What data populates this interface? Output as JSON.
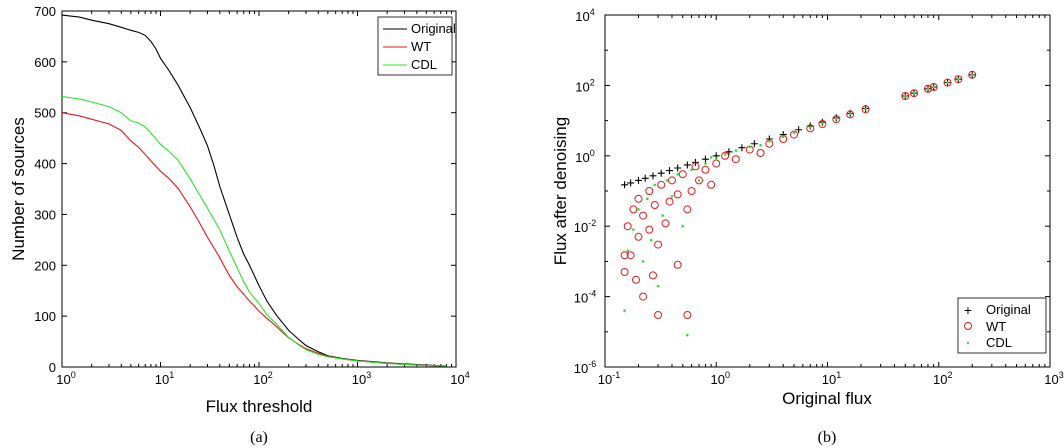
{
  "chart_data": [
    {
      "type": "line",
      "caption": "(a)",
      "xlabel": "Flux threshold",
      "ylabel": "Number of sources",
      "xscale": "log",
      "xlim": [
        1,
        10000
      ],
      "ylim": [
        0,
        700
      ],
      "xticks": [
        1,
        10,
        100,
        1000,
        10000
      ],
      "yticks": [
        0,
        100,
        200,
        300,
        400,
        500,
        600,
        700
      ],
      "legend": "top-right",
      "grid": false,
      "series": [
        {
          "name": "Original",
          "color": "#000000",
          "points": [
            [
              1,
              692
            ],
            [
              1.5,
              688
            ],
            [
              2,
              682
            ],
            [
              3,
              675
            ],
            [
              4,
              668
            ],
            [
              5,
              662
            ],
            [
              6,
              658
            ],
            [
              7,
              652
            ],
            [
              8,
              640
            ],
            [
              9,
              625
            ],
            [
              10,
              607
            ],
            [
              12,
              585
            ],
            [
              15,
              555
            ],
            [
              20,
              510
            ],
            [
              25,
              470
            ],
            [
              30,
              435
            ],
            [
              35,
              395
            ],
            [
              40,
              355
            ],
            [
              50,
              300
            ],
            [
              60,
              255
            ],
            [
              70,
              222
            ],
            [
              80,
              200
            ],
            [
              100,
              160
            ],
            [
              120,
              130
            ],
            [
              150,
              102
            ],
            [
              200,
              72
            ],
            [
              250,
              55
            ],
            [
              300,
              42
            ],
            [
              400,
              30
            ],
            [
              500,
              22
            ],
            [
              700,
              17
            ],
            [
              1000,
              13
            ],
            [
              2000,
              8
            ],
            [
              5000,
              4
            ],
            [
              8000,
              2
            ]
          ]
        },
        {
          "name": "WT",
          "color": "#e41a1c",
          "points": [
            [
              1,
              500
            ],
            [
              1.5,
              494
            ],
            [
              2,
              487
            ],
            [
              3,
              478
            ],
            [
              4,
              465
            ],
            [
              5,
              445
            ],
            [
              6,
              432
            ],
            [
              7,
              418
            ],
            [
              8,
              405
            ],
            [
              10,
              385
            ],
            [
              12,
              372
            ],
            [
              15,
              352
            ],
            [
              20,
              315
            ],
            [
              25,
              283
            ],
            [
              30,
              255
            ],
            [
              40,
              215
            ],
            [
              50,
              180
            ],
            [
              60,
              158
            ],
            [
              70,
              143
            ],
            [
              80,
              130
            ],
            [
              100,
              110
            ],
            [
              120,
              96
            ],
            [
              150,
              80
            ],
            [
              200,
              57
            ],
            [
              250,
              45
            ],
            [
              300,
              36
            ],
            [
              400,
              27
            ],
            [
              500,
              21
            ],
            [
              700,
              16
            ],
            [
              1000,
              12
            ],
            [
              2000,
              7
            ],
            [
              5000,
              3
            ],
            [
              8000,
              2
            ]
          ]
        },
        {
          "name": "CDL",
          "color": "#2ee02e",
          "points": [
            [
              1,
              532
            ],
            [
              1.5,
              527
            ],
            [
              2,
              521
            ],
            [
              3,
              512
            ],
            [
              4,
              500
            ],
            [
              5,
              484
            ],
            [
              6,
              480
            ],
            [
              7,
              472
            ],
            [
              8,
              460
            ],
            [
              10,
              438
            ],
            [
              12,
              425
            ],
            [
              15,
              407
            ],
            [
              20,
              370
            ],
            [
              25,
              338
            ],
            [
              30,
              312
            ],
            [
              40,
              270
            ],
            [
              50,
              228
            ],
            [
              60,
              195
            ],
            [
              70,
              168
            ],
            [
              80,
              147
            ],
            [
              100,
              125
            ],
            [
              120,
              103
            ],
            [
              150,
              85
            ],
            [
              200,
              58
            ],
            [
              250,
              44
            ],
            [
              300,
              34
            ],
            [
              400,
              25
            ],
            [
              500,
              20
            ],
            [
              700,
              16
            ],
            [
              1000,
              12
            ],
            [
              2000,
              7
            ],
            [
              5000,
              3
            ],
            [
              8000,
              2
            ]
          ]
        }
      ]
    },
    {
      "type": "scatter",
      "caption": "(b)",
      "xlabel": "Original flux",
      "ylabel": "Flux after denoising",
      "xscale": "log",
      "yscale": "log",
      "xlim": [
        0.1,
        1000
      ],
      "ylim": [
        1e-06,
        10000
      ],
      "xticks": [
        0.1,
        1,
        10,
        100,
        1000
      ],
      "yticks": [
        1e-06,
        0.0001,
        0.01,
        1,
        100,
        10000
      ],
      "legend": "bottom-right",
      "grid": false,
      "series": [
        {
          "name": "Original",
          "marker": "plus",
          "color": "#000000",
          "points": [
            [
              0.15,
              0.15
            ],
            [
              0.17,
              0.17
            ],
            [
              0.2,
              0.2
            ],
            [
              0.23,
              0.23
            ],
            [
              0.27,
              0.27
            ],
            [
              0.32,
              0.32
            ],
            [
              0.38,
              0.38
            ],
            [
              0.45,
              0.45
            ],
            [
              0.55,
              0.55
            ],
            [
              0.65,
              0.65
            ],
            [
              0.8,
              0.8
            ],
            [
              1,
              1
            ],
            [
              1.3,
              1.3
            ],
            [
              1.7,
              1.7
            ],
            [
              2.2,
              2.2
            ],
            [
              3,
              3
            ],
            [
              4,
              4
            ],
            [
              5.5,
              5.5
            ],
            [
              7,
              7
            ],
            [
              9,
              9
            ],
            [
              12,
              12
            ],
            [
              16,
              16
            ],
            [
              22,
              22
            ],
            [
              50,
              50
            ],
            [
              60,
              60
            ],
            [
              80,
              80
            ],
            [
              90,
              90
            ],
            [
              120,
              120
            ],
            [
              150,
              150
            ],
            [
              200,
              200
            ]
          ]
        },
        {
          "name": "WT",
          "marker": "circle",
          "color": "#e41a1c",
          "points": [
            [
              0.15,
              0.0015
            ],
            [
              0.15,
              0.0005
            ],
            [
              0.16,
              0.01
            ],
            [
              0.17,
              0.0015
            ],
            [
              0.18,
              0.03
            ],
            [
              0.19,
              0.0003
            ],
            [
              0.2,
              0.005
            ],
            [
              0.2,
              0.06
            ],
            [
              0.22,
              0.02
            ],
            [
              0.22,
              0.0001
            ],
            [
              0.25,
              0.008
            ],
            [
              0.25,
              0.1
            ],
            [
              0.27,
              0.0004
            ],
            [
              0.28,
              0.04
            ],
            [
              0.3,
              3e-05
            ],
            [
              0.3,
              0.003
            ],
            [
              0.32,
              0.15
            ],
            [
              0.35,
              0.012
            ],
            [
              0.38,
              0.05
            ],
            [
              0.4,
              0.2
            ],
            [
              0.45,
              0.0008
            ],
            [
              0.45,
              0.08
            ],
            [
              0.5,
              0.3
            ],
            [
              0.55,
              3e-05
            ],
            [
              0.55,
              0.03
            ],
            [
              0.6,
              0.1
            ],
            [
              0.65,
              0.5
            ],
            [
              0.7,
              0.2
            ],
            [
              0.8,
              0.4
            ],
            [
              0.9,
              0.15
            ],
            [
              1,
              0.6
            ],
            [
              1.2,
              1
            ],
            [
              1.5,
              0.8
            ],
            [
              2,
              1.5
            ],
            [
              2.5,
              1.2
            ],
            [
              3,
              2.2
            ],
            [
              4,
              3
            ],
            [
              5,
              4
            ],
            [
              7,
              6
            ],
            [
              9,
              8
            ],
            [
              12,
              11
            ],
            [
              16,
              15
            ],
            [
              22,
              21
            ],
            [
              50,
              50
            ],
            [
              60,
              60
            ],
            [
              80,
              80
            ],
            [
              90,
              90
            ],
            [
              120,
              120
            ],
            [
              150,
              150
            ],
            [
              200,
              200
            ]
          ]
        },
        {
          "name": "CDL",
          "marker": "dot",
          "color": "#2ee02e",
          "points": [
            [
              0.15,
              4e-05
            ],
            [
              0.16,
              0.002
            ],
            [
              0.18,
              0.008
            ],
            [
              0.2,
              0.03
            ],
            [
              0.22,
              0.001
            ],
            [
              0.24,
              0.06
            ],
            [
              0.26,
              0.004
            ],
            [
              0.28,
              0.15
            ],
            [
              0.3,
              0.0002
            ],
            [
              0.33,
              0.02
            ],
            [
              0.36,
              0.2
            ],
            [
              0.4,
              0.07
            ],
            [
              0.45,
              0.3
            ],
            [
              0.5,
              0.01
            ],
            [
              0.55,
              8e-06
            ],
            [
              0.6,
              0.4
            ],
            [
              0.7,
              0.2
            ],
            [
              0.8,
              0.6
            ],
            [
              0.9,
              0.9
            ],
            [
              1,
              0.8
            ],
            [
              1.2,
              1.1
            ],
            [
              1.5,
              1.4
            ],
            [
              2,
              1.8
            ],
            [
              2.5,
              2
            ],
            [
              3,
              2.6
            ],
            [
              4,
              3.5
            ],
            [
              5,
              4.5
            ],
            [
              7,
              6.5
            ],
            [
              9,
              8.5
            ],
            [
              12,
              11.5
            ],
            [
              16,
              15.5
            ],
            [
              22,
              21.5
            ],
            [
              50,
              50
            ],
            [
              60,
              60
            ],
            [
              80,
              80
            ],
            [
              90,
              90
            ],
            [
              120,
              120
            ],
            [
              150,
              150
            ],
            [
              200,
              200
            ]
          ]
        }
      ]
    }
  ]
}
